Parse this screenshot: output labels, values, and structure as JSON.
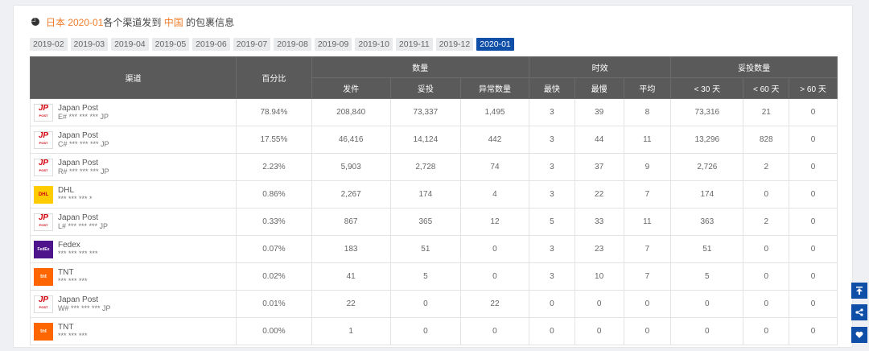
{
  "header": {
    "prefix": "日本 2020-01",
    "middle": "各个渠道发到",
    "dest": "中国",
    "suffix": "的包裹信息"
  },
  "months": [
    "2019-02",
    "2019-03",
    "2019-04",
    "2019-05",
    "2019-06",
    "2019-07",
    "2019-08",
    "2019-09",
    "2019-10",
    "2019-11",
    "2019-12",
    "2020-01"
  ],
  "active_month": "2020-01",
  "table": {
    "group_headers": {
      "qty": "数量",
      "time": "时效",
      "delivered_qty": "妥投数量"
    },
    "col_channel": "渠道",
    "col_percent": "百分比",
    "sub": [
      "发件",
      "妥投",
      "异常数量",
      "最快",
      "最慢",
      "平均",
      "< 30 天",
      "< 60 天",
      "> 60 天"
    ],
    "rows": [
      {
        "logo": "jp",
        "name": "Japan Post",
        "code": "E# *** *** *** JP",
        "cells": [
          "78.94%",
          "208,840",
          "73,337",
          "1,495",
          "3",
          "39",
          "8",
          "73,316",
          "21",
          "0"
        ]
      },
      {
        "logo": "jp",
        "name": "Japan Post",
        "code": "C# *** *** *** JP",
        "cells": [
          "17.55%",
          "46,416",
          "14,124",
          "442",
          "3",
          "44",
          "11",
          "13,296",
          "828",
          "0"
        ]
      },
      {
        "logo": "jp",
        "name": "Japan Post",
        "code": "R# *** *** *** JP",
        "cells": [
          "2.23%",
          "5,903",
          "2,728",
          "74",
          "3",
          "37",
          "9",
          "2,726",
          "2",
          "0"
        ]
      },
      {
        "logo": "dhl",
        "name": "DHL",
        "code": "*** *** *** *",
        "cells": [
          "0.86%",
          "2,267",
          "174",
          "4",
          "3",
          "22",
          "7",
          "174",
          "0",
          "0"
        ]
      },
      {
        "logo": "jp",
        "name": "Japan Post",
        "code": "L# *** *** *** JP",
        "cells": [
          "0.33%",
          "867",
          "365",
          "12",
          "5",
          "33",
          "11",
          "363",
          "2",
          "0"
        ]
      },
      {
        "logo": "fedex",
        "name": "Fedex",
        "code": "*** *** *** ***",
        "cells": [
          "0.07%",
          "183",
          "51",
          "0",
          "3",
          "23",
          "7",
          "51",
          "0",
          "0"
        ]
      },
      {
        "logo": "tnt",
        "name": "TNT",
        "code": "*** *** ***",
        "cells": [
          "0.02%",
          "41",
          "5",
          "0",
          "3",
          "10",
          "7",
          "5",
          "0",
          "0"
        ]
      },
      {
        "logo": "jp",
        "name": "Japan Post",
        "code": "W# *** *** *** JP",
        "cells": [
          "0.01%",
          "22",
          "0",
          "22",
          "0",
          "0",
          "0",
          "0",
          "0",
          "0"
        ]
      },
      {
        "logo": "tnt",
        "name": "TNT",
        "code": "*** *** ***",
        "cells": [
          "0.00%",
          "1",
          "0",
          "0",
          "0",
          "0",
          "0",
          "0",
          "0",
          "0"
        ]
      }
    ]
  },
  "logos": {
    "jp_text": "JP",
    "jp_sub": "POST",
    "dhl_text": "DHL",
    "fedex_text": "FedEx",
    "tnt_text": "tnt"
  },
  "side_icons": [
    "to-top-icon",
    "share-icon",
    "heart-icon"
  ]
}
